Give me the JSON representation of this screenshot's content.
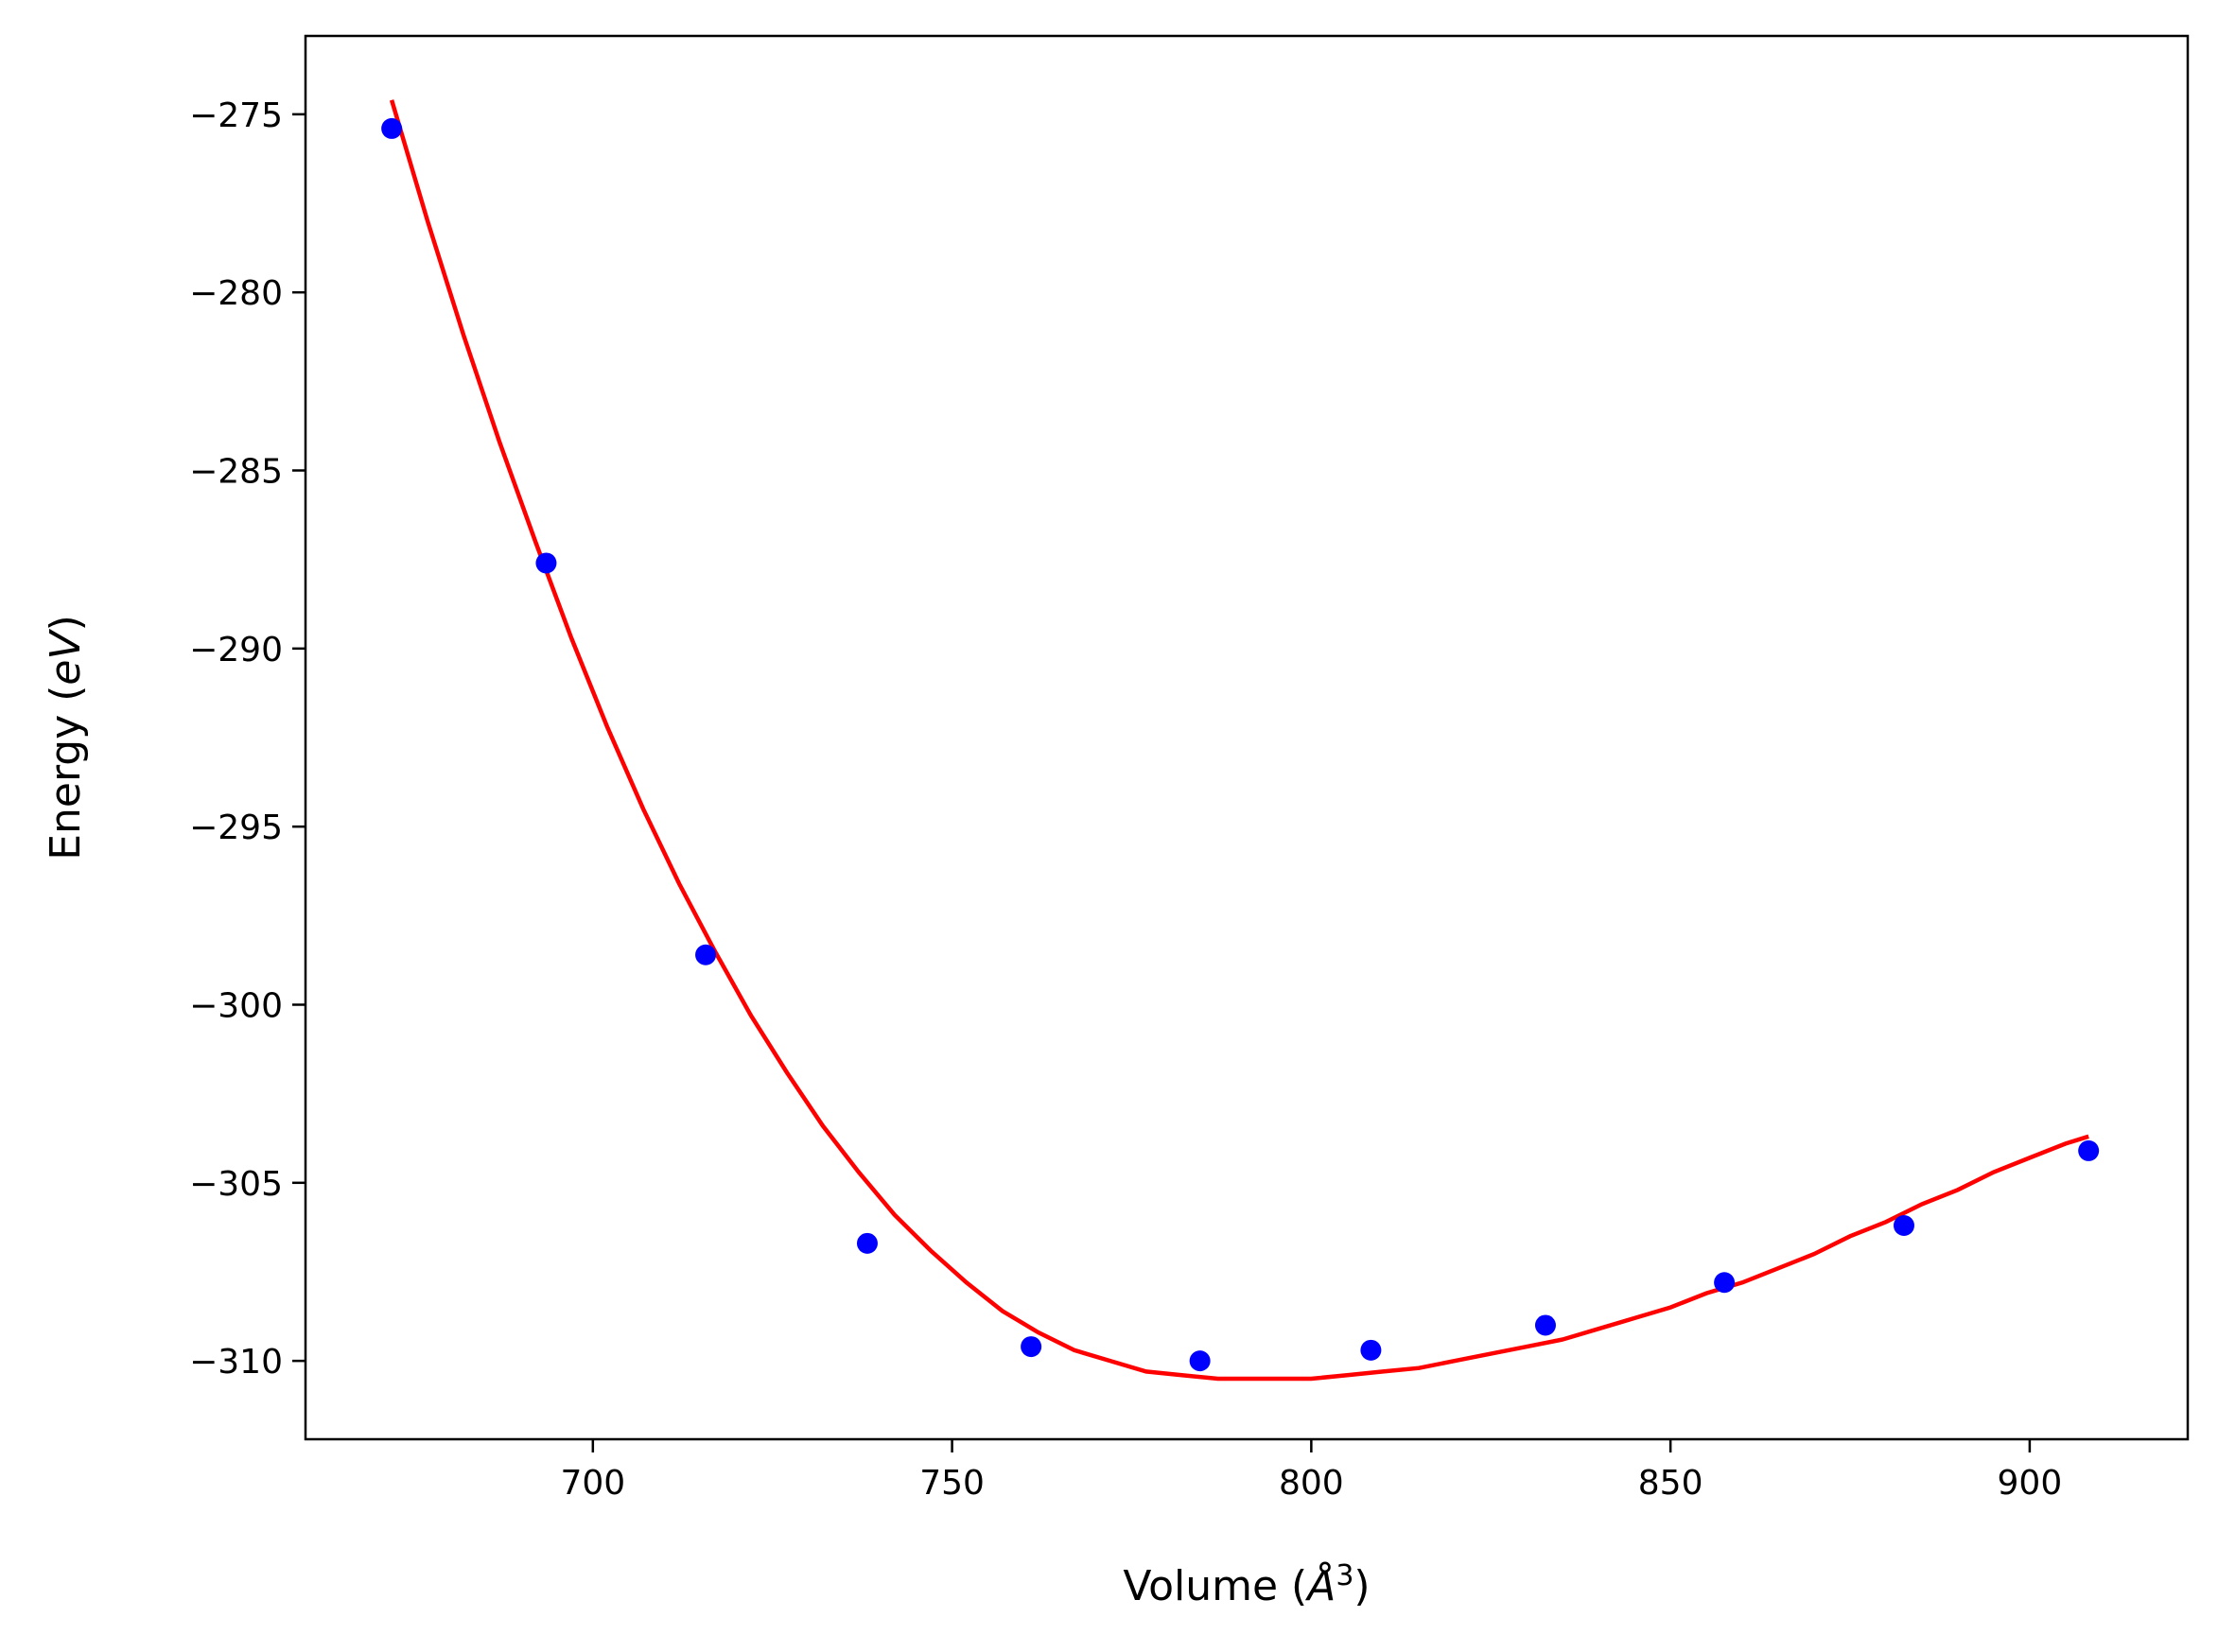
{
  "chart_data": {
    "type": "scatter",
    "xlabel": "Volume (Å³)",
    "ylabel": "Energy (eV)",
    "xlabel_parts": {
      "pre": "Volume (",
      "sym": "Å",
      "sup": "3",
      "post": ")"
    },
    "ylabel_parts": {
      "pre": "Energy (",
      "var": "eV",
      "post": ")"
    },
    "xlim": [
      660,
      922
    ],
    "ylim": [
      -312.2,
      -272.8
    ],
    "grid": false,
    "x_ticks": [
      700,
      750,
      800,
      850,
      900
    ],
    "x_tick_labels": [
      "700",
      "750",
      "800",
      "850",
      "900"
    ],
    "y_ticks": [
      -275,
      -280,
      -285,
      -290,
      -295,
      -300,
      -305,
      -310
    ],
    "y_tick_labels": [
      "−275",
      "−280",
      "−285",
      "−290",
      "−295",
      "−300",
      "−305",
      "−310"
    ],
    "series": [
      {
        "kind": "points",
        "color": "#0000ff",
        "x": [
          672.0,
          693.5,
          715.7,
          738.2,
          761.0,
          784.5,
          808.3,
          832.6,
          857.5,
          882.5,
          908.2
        ],
        "y": [
          -275.4,
          -287.6,
          -298.6,
          -306.7,
          -309.6,
          -310.0,
          -309.7,
          -309.0,
          -307.8,
          -306.2,
          -304.1
        ]
      },
      {
        "kind": "fit_curve",
        "color": "#ff0000",
        "x": [
          672.0,
          677.0,
          682.0,
          687.0,
          692.0,
          697.0,
          702.0,
          707.0,
          712.0,
          717.0,
          722.0,
          727.0,
          732.0,
          737.0,
          742.0,
          747.0,
          752.0,
          757.0,
          762.0,
          767.0,
          772.0,
          777.0,
          782.0,
          787.0,
          792.0,
          797.0,
          800.0,
          805.0,
          810.0,
          815.0,
          820.0,
          825.0,
          830.0,
          835.0,
          840.0,
          845.0,
          850.0,
          855.0,
          860.0,
          865.0,
          870.0,
          875.0,
          880.0,
          885.0,
          890.0,
          895.0,
          900.0,
          905.0,
          908.2
        ],
        "y": [
          -274.6,
          -278.0,
          -281.2,
          -284.2,
          -287.0,
          -289.7,
          -292.2,
          -294.5,
          -296.6,
          -298.5,
          -300.3,
          -301.9,
          -303.4,
          -304.7,
          -305.9,
          -306.9,
          -307.8,
          -308.6,
          -309.2,
          -309.7,
          -310.0,
          -310.3,
          -310.4,
          -310.5,
          -310.5,
          -310.5,
          -310.5,
          -310.4,
          -310.3,
          -310.2,
          -310.0,
          -309.8,
          -309.6,
          -309.4,
          -309.1,
          -308.8,
          -308.5,
          -308.1,
          -307.8,
          -307.4,
          -307.0,
          -306.5,
          -306.1,
          -305.6,
          -305.2,
          -304.7,
          -304.3,
          -303.9,
          -303.7
        ]
      }
    ]
  }
}
